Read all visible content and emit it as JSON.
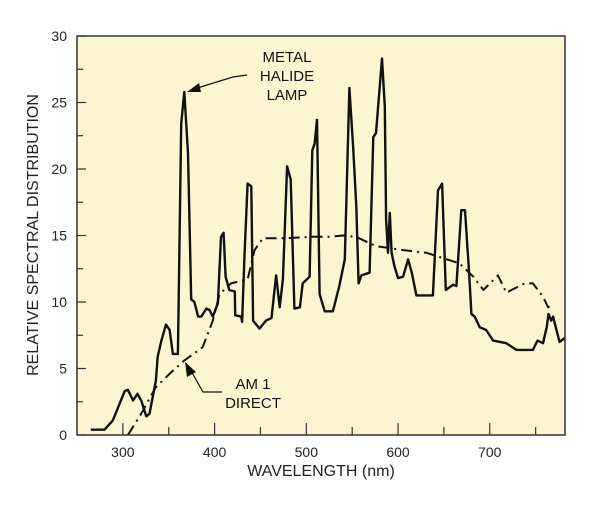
{
  "chart_data": {
    "type": "line",
    "title": "",
    "xlabel": "WAVELENGTH (nm)",
    "ylabel": "RELATIVE SPECTRAL DISTRIBUTION",
    "xlim": [
      250,
      782
    ],
    "ylim": [
      0,
      30
    ],
    "xticks": [
      300,
      400,
      500,
      600,
      700
    ],
    "yticks": [
      0,
      5,
      10,
      15,
      20,
      25,
      30
    ],
    "grid": false,
    "background_color": "#fcf5cf",
    "series": [
      {
        "name": "METAL HALIDE LAMP",
        "style": "solid",
        "color": "#111111",
        "points": [
          [
            265,
            0.4
          ],
          [
            280,
            0.4
          ],
          [
            289,
            1.1
          ],
          [
            302,
            3.3
          ],
          [
            305.5,
            3.4
          ],
          [
            311,
            2.6
          ],
          [
            316,
            3.1
          ],
          [
            320,
            2.6
          ],
          [
            325.5,
            1.4
          ],
          [
            329,
            1.6
          ],
          [
            336,
            4.1
          ],
          [
            338,
            5.9
          ],
          [
            342,
            7.1
          ],
          [
            347,
            8.3
          ],
          [
            351,
            7.9
          ],
          [
            354.5,
            6.1
          ],
          [
            360,
            6.1
          ],
          [
            363.6,
            23.4
          ],
          [
            367,
            25.8
          ],
          [
            371,
            21.2
          ],
          [
            374.5,
            10.2
          ],
          [
            378,
            10
          ],
          [
            382,
            8.9
          ],
          [
            385.5,
            8.9
          ],
          [
            391,
            9.5
          ],
          [
            394.5,
            9.4
          ],
          [
            398,
            8.9
          ],
          [
            403.6,
            9.9
          ],
          [
            407,
            14.9
          ],
          [
            409.8,
            15.2
          ],
          [
            412,
            11.9
          ],
          [
            416,
            10.9
          ],
          [
            422,
            10.8
          ],
          [
            422.5,
            9
          ],
          [
            429,
            8.9
          ],
          [
            430,
            8.5
          ],
          [
            432.7,
            13.7
          ],
          [
            436,
            18.9
          ],
          [
            440,
            18.7
          ],
          [
            442,
            8.6
          ],
          [
            449,
            8
          ],
          [
            456,
            8.6
          ],
          [
            462,
            8.8
          ],
          [
            467,
            12
          ],
          [
            471,
            9.6
          ],
          [
            474.5,
            11.7
          ],
          [
            479,
            20.2
          ],
          [
            483,
            19.2
          ],
          [
            487,
            9.5
          ],
          [
            493,
            9.6
          ],
          [
            496,
            11.4
          ],
          [
            503.6,
            11.9
          ],
          [
            506.5,
            21.4
          ],
          [
            509,
            21.9
          ],
          [
            511.6,
            23.7
          ],
          [
            514.5,
            10.6
          ],
          [
            520,
            9.3
          ],
          [
            529,
            9.3
          ],
          [
            536,
            11.2
          ],
          [
            542,
            13.2
          ],
          [
            547,
            26.1
          ],
          [
            551,
            21.7
          ],
          [
            554.5,
            17.2
          ],
          [
            557,
            11.4
          ],
          [
            560,
            12
          ],
          [
            569,
            12.2
          ],
          [
            573,
            22.4
          ],
          [
            576,
            22.7
          ],
          [
            582.5,
            28.3
          ],
          [
            585.5,
            24.7
          ],
          [
            587,
            16.2
          ],
          [
            589,
            13.7
          ],
          [
            591,
            16.7
          ],
          [
            593,
            13.7
          ],
          [
            596,
            12.7
          ],
          [
            600,
            11.8
          ],
          [
            605.5,
            11.9
          ],
          [
            611,
            13.2
          ],
          [
            615,
            12.2
          ],
          [
            620,
            10.5
          ],
          [
            638,
            10.5
          ],
          [
            643.6,
            18.4
          ],
          [
            648,
            18.9
          ],
          [
            652,
            10.9
          ],
          [
            660,
            11.3
          ],
          [
            663.6,
            11.2
          ],
          [
            669,
            16.9
          ],
          [
            673,
            16.9
          ],
          [
            677.5,
            12.2
          ],
          [
            680,
            9.1
          ],
          [
            683.6,
            8.9
          ],
          [
            689,
            8.1
          ],
          [
            696,
            7.9
          ],
          [
            703.6,
            7.1
          ],
          [
            718,
            6.9
          ],
          [
            729,
            6.4
          ],
          [
            747,
            6.4
          ],
          [
            752,
            7.1
          ],
          [
            758,
            6.9
          ],
          [
            762,
            8.1
          ],
          [
            764,
            9.1
          ],
          [
            767,
            8.6
          ],
          [
            769,
            8.9
          ],
          [
            772,
            8.1
          ],
          [
            776,
            7
          ],
          [
            782,
            7.3
          ]
        ]
      },
      {
        "name": "AM 1 DIRECT",
        "style": "dash-dot",
        "color": "#111111",
        "points": [
          [
            305.5,
            0
          ],
          [
            320,
            1.6
          ],
          [
            336,
            3.6
          ],
          [
            351,
            4.6
          ],
          [
            367,
            5.6
          ],
          [
            387,
            6.6
          ],
          [
            398,
            8.6
          ],
          [
            405.5,
            10.6
          ],
          [
            418,
            11.4
          ],
          [
            436,
            11.7
          ],
          [
            443.6,
            13.9
          ],
          [
            452.7,
            14.8
          ],
          [
            476,
            14.8
          ],
          [
            507,
            14.9
          ],
          [
            525,
            14.9
          ],
          [
            540,
            15.0
          ],
          [
            554,
            14.9
          ],
          [
            576,
            14.2
          ],
          [
            605.5,
            13.9
          ],
          [
            631,
            13.7
          ],
          [
            667,
            12.9
          ],
          [
            682,
            11.9
          ],
          [
            693,
            10.9
          ],
          [
            709,
            12
          ],
          [
            718,
            10.7
          ],
          [
            738,
            11.4
          ],
          [
            747,
            11.4
          ],
          [
            758,
            10.4
          ],
          [
            763.6,
            9.6
          ],
          [
            769,
            9.9
          ]
        ]
      }
    ],
    "annotations": {
      "lamp": [
        "METAL",
        "HALIDE",
        "LAMP"
      ],
      "am1": [
        "AM 1",
        "DIRECT"
      ]
    }
  }
}
